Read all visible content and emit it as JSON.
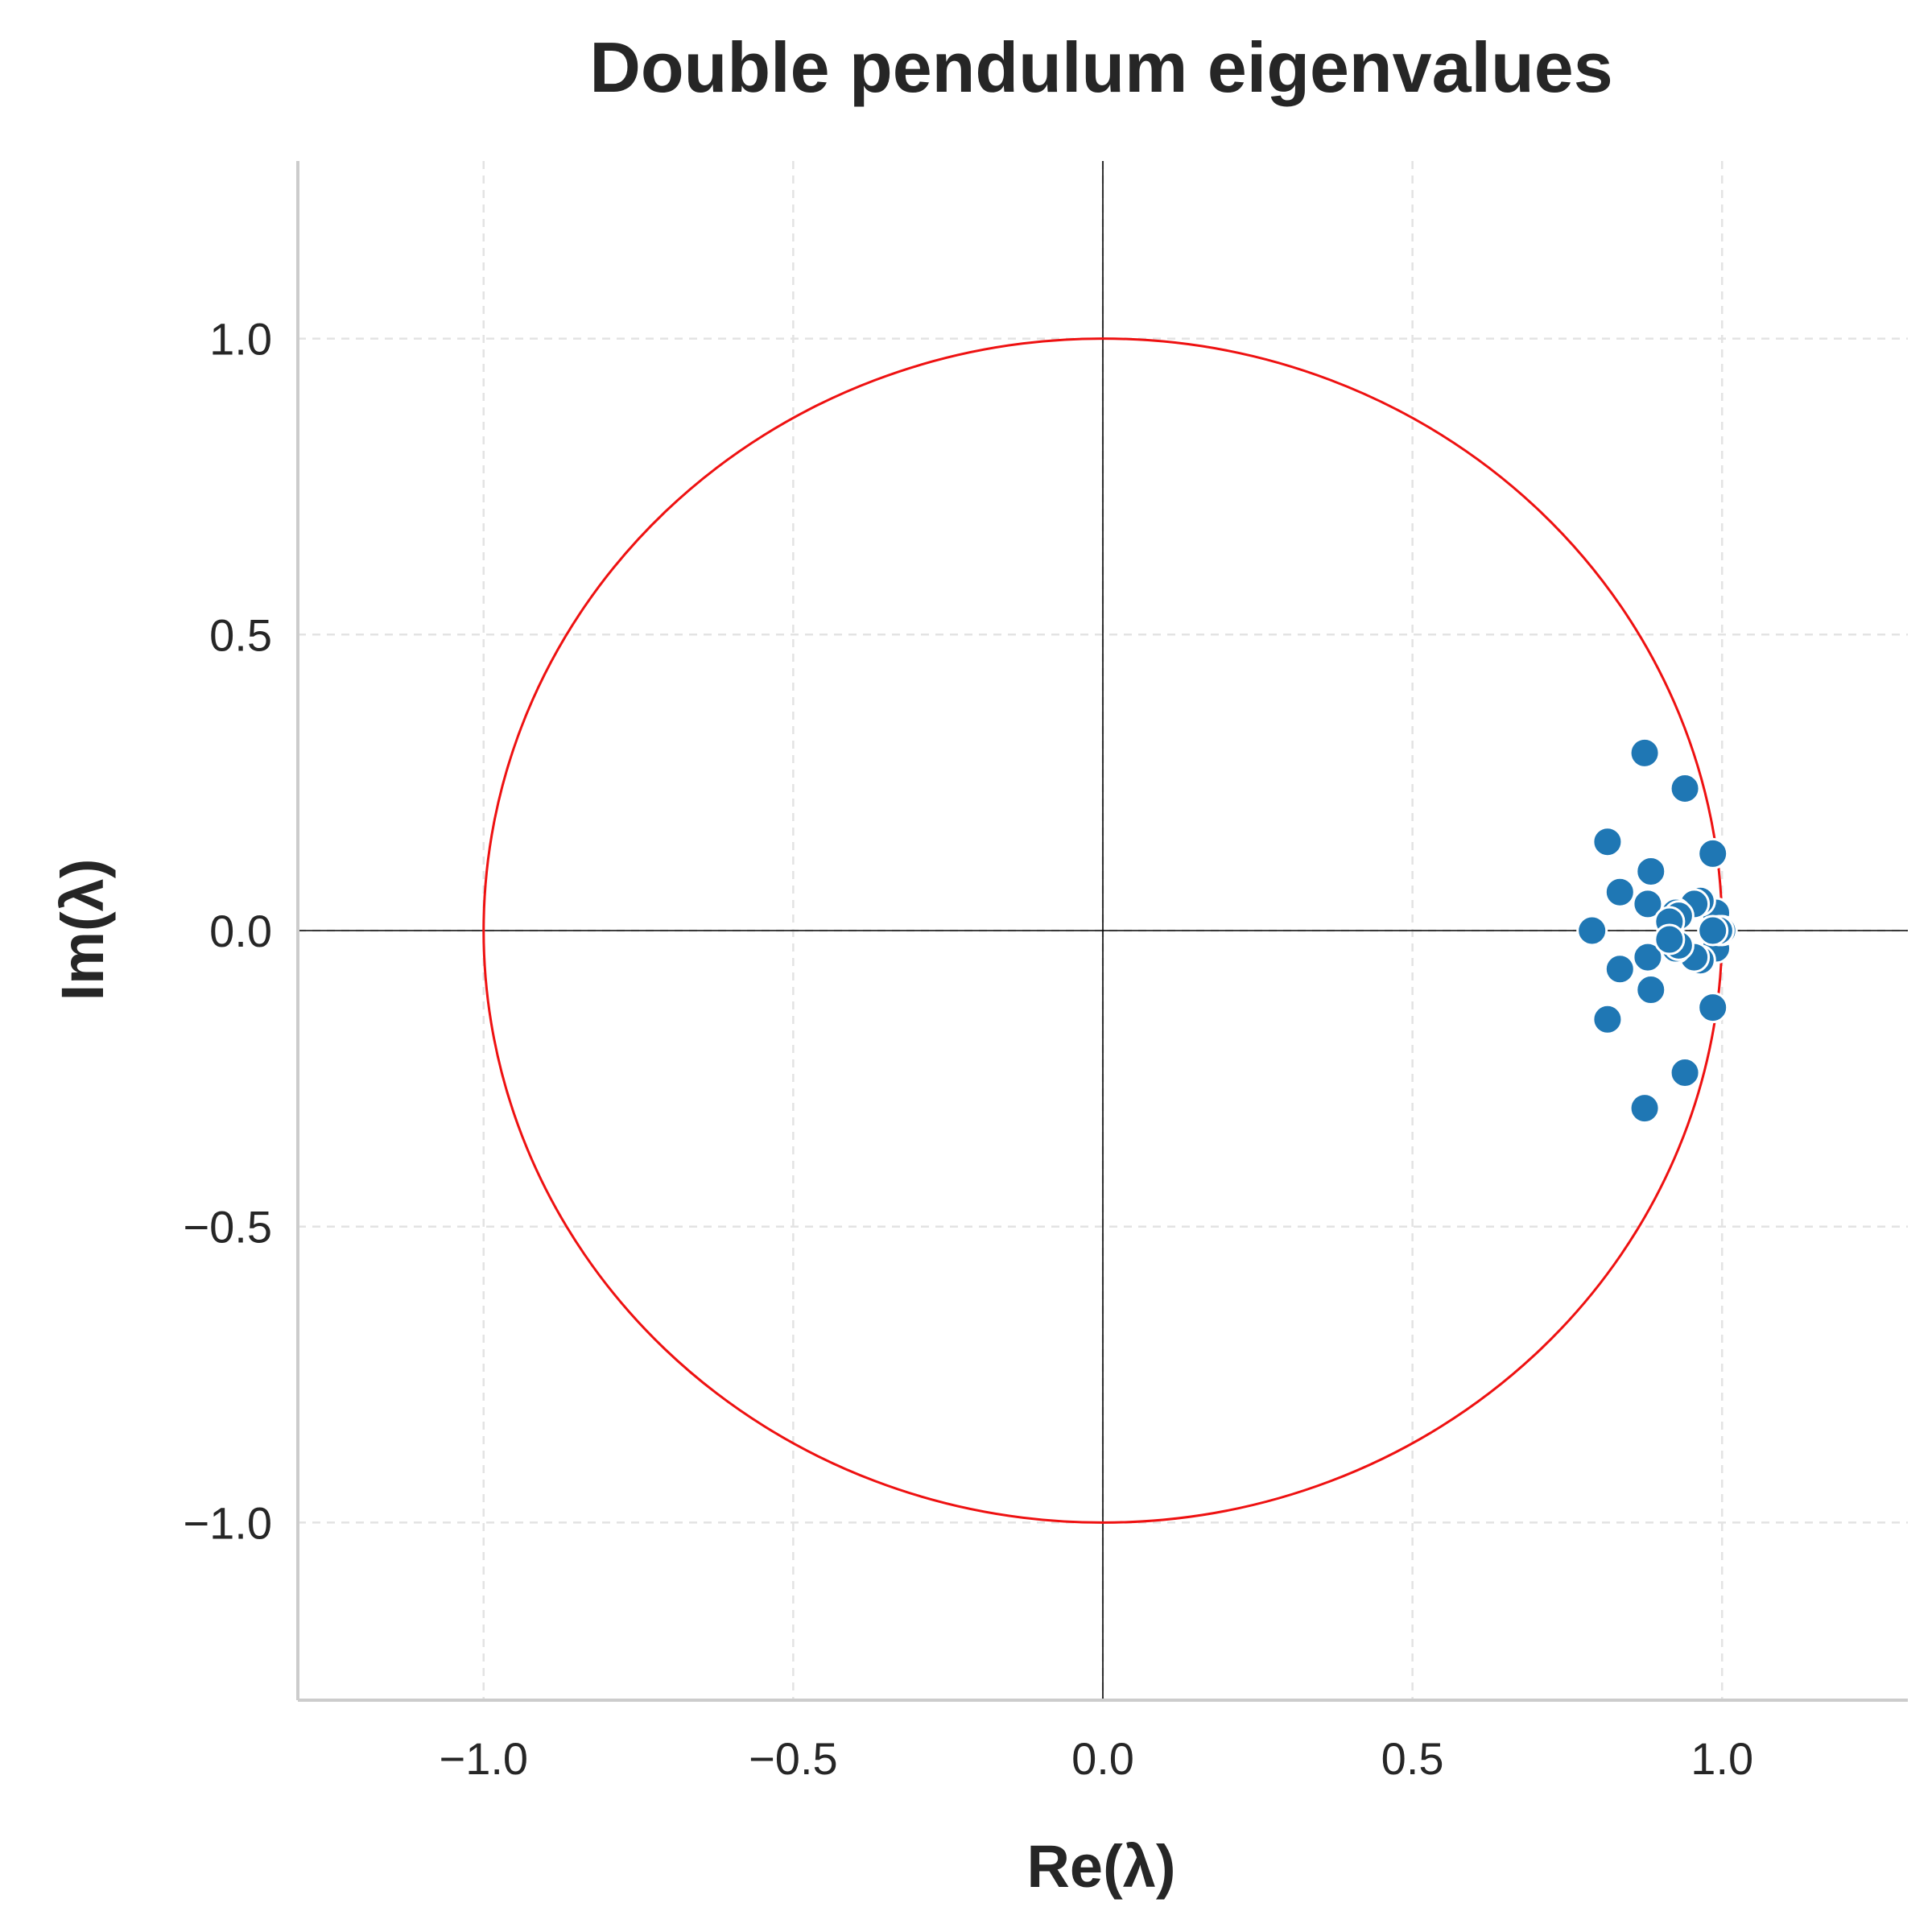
{
  "chart_data": {
    "type": "scatter",
    "title": "Double pendulum eigenvalues",
    "xlabel": "Re(λ)",
    "ylabel": "Im(λ)",
    "xlim": [
      -1.3,
      1.3
    ],
    "ylim": [
      -1.3,
      1.3
    ],
    "xticks": [
      -1.0,
      -0.5,
      0.0,
      0.5,
      1.0
    ],
    "yticks": [
      -1.0,
      -0.5,
      0.0,
      0.5,
      1.0
    ],
    "xtick_labels": [
      "−1.0",
      "−0.5",
      "0.0",
      "0.5",
      "1.0"
    ],
    "ytick_labels": [
      "−1.0",
      "−0.5",
      "0.0",
      "0.5",
      "1.0"
    ],
    "grid": true,
    "reference": {
      "unit_circle": true,
      "zero_axes": true
    },
    "colors": {
      "points": "#1f77b4",
      "unit_circle": "#ee1111",
      "zero_lines": "#000000"
    },
    "series": [
      {
        "points": [
          [
            0.875,
            0.3
          ],
          [
            0.875,
            -0.3
          ],
          [
            0.94,
            0.24
          ],
          [
            0.94,
            -0.24
          ],
          [
            0.815,
            0.15
          ],
          [
            0.815,
            -0.15
          ],
          [
            0.985,
            0.13
          ],
          [
            0.985,
            -0.13
          ],
          [
            0.885,
            0.1
          ],
          [
            0.885,
            -0.1
          ],
          [
            0.835,
            0.065
          ],
          [
            0.835,
            -0.065
          ],
          [
            0.88,
            0.045
          ],
          [
            0.88,
            -0.045
          ],
          [
            0.79,
            0.0
          ],
          [
            0.99,
            0.03
          ],
          [
            0.99,
            -0.03
          ],
          [
            0.965,
            0.05
          ],
          [
            0.965,
            -0.05
          ],
          [
            0.955,
            0.045
          ],
          [
            0.955,
            -0.045
          ],
          [
            0.925,
            0.03
          ],
          [
            0.925,
            -0.03
          ],
          [
            0.93,
            0.025
          ],
          [
            0.93,
            -0.025
          ],
          [
            0.915,
            0.015
          ],
          [
            0.915,
            -0.015
          ],
          [
            1.0,
            0.0
          ],
          [
            0.995,
            0.0
          ],
          [
            0.985,
            0.0
          ]
        ]
      }
    ]
  }
}
